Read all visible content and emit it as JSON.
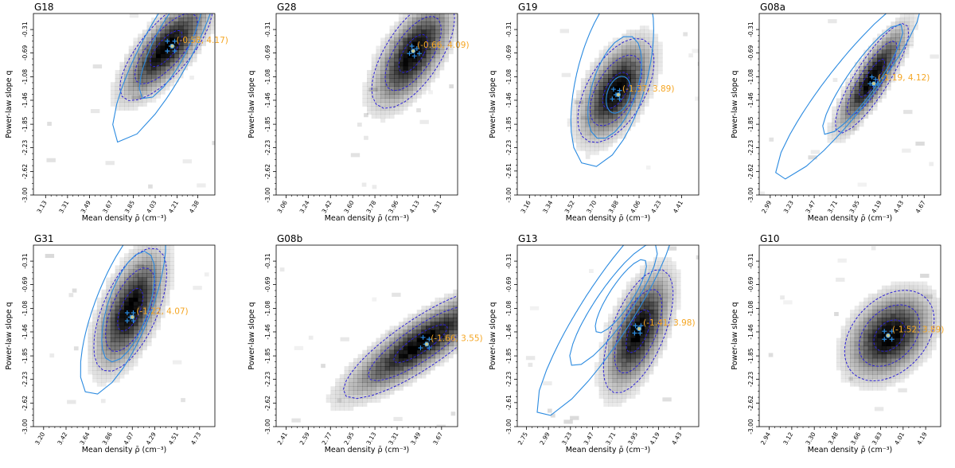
{
  "figure": {
    "xlabel": "Mean density ρ̄ (cm⁻³)",
    "ylabel": "Power-law slope q",
    "colors": {
      "density": "#000000",
      "dashed_contour": "#2b1fd6",
      "solid_contour": "#2a8ae0",
      "best_fit_label": "#f5a623",
      "markers": "#2a8ae0",
      "best_fit_marker": "#c8c890"
    }
  },
  "chart_data": [
    {
      "type": "heatmap",
      "title": "G18",
      "xlabel": "Mean density ρ̄ (cm⁻³)",
      "ylabel": "Power-law slope q",
      "x_ticks": [
        "3.13",
        "3.31",
        "3.49",
        "3.67",
        "3.85",
        "4.03",
        "4.21",
        "4.38"
      ],
      "y_ticks": [
        "-0.31",
        "-0.69",
        "-1.08",
        "-1.46",
        "-1.85",
        "-2.23",
        "-2.62",
        "-3.00"
      ],
      "xlim": [
        3.03,
        4.52
      ],
      "ylim": [
        -3.0,
        -0.05
      ],
      "peak": {
        "x": 4.12,
        "y": -0.62,
        "sx": 0.17,
        "sy": 0.38,
        "rho": 0.75
      },
      "best_fit": {
        "x": 4.17,
        "y": -0.58,
        "label": "(-0.58, 4.17)"
      },
      "markers": [
        [
          4.13,
          -0.5
        ],
        [
          4.19,
          -0.5
        ],
        [
          4.16,
          -0.58
        ],
        [
          4.13,
          -0.66
        ],
        [
          4.19,
          -0.66
        ]
      ],
      "solid_contours": [
        {
          "cx": 4.12,
          "cy": -0.65,
          "sx": 0.22,
          "sy": 0.75,
          "rho": 0.85
        },
        {
          "cx": 4.16,
          "cy": -0.55,
          "sx": 0.13,
          "sy": 0.45,
          "rho": 0.8
        }
      ]
    },
    {
      "type": "heatmap",
      "title": "G28",
      "xlabel": "Mean density ρ̄ (cm⁻³)",
      "ylabel": "Power-law slope q",
      "x_ticks": [
        "3.06",
        "3.24",
        "3.42",
        "3.60",
        "3.78",
        "3.96",
        "4.13",
        "4.31"
      ],
      "y_ticks": [
        "-0.31",
        "-0.69",
        "-1.08",
        "-1.46",
        "-1.85",
        "-2.23",
        "-2.62",
        "-3.00"
      ],
      "xlim": [
        2.98,
        4.45
      ],
      "ylim": [
        -3.0,
        -0.05
      ],
      "peak": {
        "x": 4.09,
        "y": -0.7,
        "sx": 0.15,
        "sy": 0.4,
        "rho": 0.65
      },
      "best_fit": {
        "x": 4.09,
        "y": -0.66,
        "label": "(-0.66, 4.09)"
      },
      "markers": [
        [
          4.08,
          -0.58
        ],
        [
          4.12,
          -0.62
        ],
        [
          4.06,
          -0.7
        ],
        [
          4.1,
          -0.74
        ],
        [
          4.14,
          -0.7
        ]
      ],
      "solid_contours": []
    },
    {
      "type": "heatmap",
      "title": "G19",
      "xlabel": "Mean density ρ̄ (cm⁻³)",
      "ylabel": "Power-law slope q",
      "x_ticks": [
        "3.16",
        "3.34",
        "3.52",
        "3.70",
        "3.88",
        "4.06",
        "4.23",
        "4.41"
      ],
      "y_ticks": [
        "-0.31",
        "-0.69",
        "-1.08",
        "-1.46",
        "-1.85",
        "-2.23",
        "-2.61",
        "-3.00"
      ],
      "xlim": [
        3.06,
        4.55
      ],
      "ylim": [
        -3.0,
        -0.05
      ],
      "peak": {
        "x": 3.87,
        "y": -1.3,
        "sx": 0.14,
        "sy": 0.38,
        "rho": 0.55
      },
      "best_fit": {
        "x": 3.89,
        "y": -1.37,
        "label": "(-1.37, 3.89)"
      },
      "markers": [
        [
          3.85,
          -1.28
        ],
        [
          3.9,
          -1.3
        ],
        [
          3.87,
          -1.37
        ],
        [
          3.84,
          -1.44
        ],
        [
          3.9,
          -1.44
        ]
      ],
      "solid_contours": [
        {
          "cx": 3.84,
          "cy": -1.05,
          "sx": 0.17,
          "sy": 0.75,
          "rho": 0.5
        },
        {
          "cx": 3.86,
          "cy": -1.25,
          "sx": 0.11,
          "sy": 0.42,
          "rho": 0.5
        },
        {
          "cx": 3.89,
          "cy": -1.37,
          "sx": 0.05,
          "sy": 0.15,
          "rho": 0.3
        }
      ]
    },
    {
      "type": "heatmap",
      "title": "G08a",
      "xlabel": "Mean density ρ̄ (cm⁻³)",
      "ylabel": "Power-law slope q",
      "x_ticks": [
        "2.99",
        "3.23",
        "3.47",
        "3.71",
        "3.95",
        "4.19",
        "4.43",
        "4.67"
      ],
      "y_ticks": [
        "-0.31",
        "-0.69",
        "-1.08",
        "-1.46",
        "-1.85",
        "-2.23",
        "-2.62",
        "-3.00"
      ],
      "xlim": [
        2.87,
        4.85
      ],
      "ylim": [
        -3.0,
        -0.05
      ],
      "peak": {
        "x": 4.1,
        "y": -1.1,
        "sx": 0.18,
        "sy": 0.4,
        "rho": 0.85
      },
      "best_fit": {
        "x": 4.12,
        "y": -1.19,
        "label": "(-1.19, 4.12)"
      },
      "markers": [
        [
          4.1,
          -1.08
        ],
        [
          4.14,
          -1.12
        ],
        [
          4.08,
          -1.19
        ],
        [
          4.12,
          -1.22
        ],
        [
          4.16,
          -1.19
        ]
      ],
      "solid_contours": [
        {
          "cx": 3.85,
          "cy": -1.25,
          "sx": 0.4,
          "sy": 0.75,
          "rho": 0.92
        },
        {
          "cx": 4.0,
          "cy": -1.12,
          "sx": 0.22,
          "sy": 0.45,
          "rho": 0.9
        }
      ]
    },
    {
      "type": "heatmap",
      "title": "G31",
      "xlabel": "Mean density ρ̄ (cm⁻³)",
      "ylabel": "Power-law slope q",
      "x_ticks": [
        "3.20",
        "3.42",
        "3.64",
        "3.86",
        "4.07",
        "4.29",
        "4.51",
        "4.73"
      ],
      "y_ticks": [
        "-0.31",
        "-0.69",
        "-1.08",
        "-1.46",
        "-1.85",
        "-2.23",
        "-2.62",
        "-3.00"
      ],
      "xlim": [
        3.1,
        4.88
      ],
      "ylim": [
        -3.0,
        -0.05
      ],
      "peak": {
        "x": 4.05,
        "y": -1.1,
        "sx": 0.16,
        "sy": 0.45,
        "rho": 0.6
      },
      "best_fit": {
        "x": 4.07,
        "y": -1.22,
        "label": "(-1.22, 4.07)"
      },
      "markers": [
        [
          4.02,
          -1.15
        ],
        [
          4.08,
          -1.15
        ],
        [
          4.05,
          -1.22
        ],
        [
          4.02,
          -1.28
        ],
        [
          4.08,
          -1.28
        ]
      ],
      "solid_contours": [
        {
          "cx": 3.98,
          "cy": -1.05,
          "sx": 0.21,
          "sy": 0.72,
          "rho": 0.72
        },
        {
          "cx": 4.03,
          "cy": -1.05,
          "sx": 0.13,
          "sy": 0.45,
          "rho": 0.6
        }
      ]
    },
    {
      "type": "heatmap",
      "title": "G08b",
      "xlabel": "Mean density ρ̄ (cm⁻³)",
      "ylabel": "Power-law slope q",
      "x_ticks": [
        "2.41",
        "2.59",
        "2.77",
        "2.95",
        "3.13",
        "3.31",
        "3.49",
        "3.67"
      ],
      "y_ticks": [
        "-0.31",
        "-0.69",
        "-1.08",
        "-1.46",
        "-1.85",
        "-2.23",
        "-2.62",
        "-3.00"
      ],
      "xlim": [
        2.33,
        3.8
      ],
      "ylim": [
        -3.0,
        -0.05
      ],
      "peak": {
        "x": 3.5,
        "y": -1.65,
        "sx": 0.28,
        "sy": 0.4,
        "rho": 0.85
      },
      "best_fit": {
        "x": 3.55,
        "y": -1.66,
        "label": "(-1.66, 3.55)"
      },
      "markers": [
        [
          3.52,
          -1.55
        ],
        [
          3.57,
          -1.58
        ],
        [
          3.54,
          -1.66
        ],
        [
          3.5,
          -1.72
        ],
        [
          3.57,
          -1.72
        ]
      ],
      "solid_contours": []
    },
    {
      "type": "heatmap",
      "title": "G13",
      "xlabel": "Mean density ρ̄ (cm⁻³)",
      "ylabel": "Power-law slope q",
      "x_ticks": [
        "2.75",
        "2.99",
        "3.23",
        "3.47",
        "3.71",
        "3.95",
        "4.19",
        "4.43"
      ],
      "y_ticks": [
        "-0.31",
        "-0.69",
        "-1.08",
        "-1.46",
        "-1.85",
        "-2.23",
        "-2.61",
        "-3.00"
      ],
      "xlim": [
        2.65,
        4.63
      ],
      "ylim": [
        -3.0,
        -0.05
      ],
      "peak": {
        "x": 3.97,
        "y": -1.45,
        "sx": 0.17,
        "sy": 0.45,
        "rho": 0.6
      },
      "best_fit": {
        "x": 3.98,
        "y": -1.41,
        "label": "(-1.41, 3.98)"
      },
      "markers": [
        [
          3.94,
          -1.36
        ],
        [
          4.0,
          -1.36
        ],
        [
          3.97,
          -1.41
        ],
        [
          3.93,
          -1.48
        ],
        [
          3.99,
          -1.48
        ]
      ],
      "solid_contours": [
        {
          "cx": 3.62,
          "cy": -1.15,
          "sx": 0.38,
          "sy": 0.85,
          "rho": 0.9
        },
        {
          "cx": 3.7,
          "cy": -1.02,
          "sx": 0.24,
          "sy": 0.5,
          "rho": 0.88
        },
        {
          "cx": 3.78,
          "cy": -0.88,
          "sx": 0.14,
          "sy": 0.3,
          "rho": 0.85
        }
      ]
    },
    {
      "type": "heatmap",
      "title": "G10",
      "xlabel": "Mean density ρ̄ (cm⁻³)",
      "ylabel": "Power-law slope q",
      "x_ticks": [
        "2.94",
        "3.12",
        "3.30",
        "3.48",
        "3.66",
        "3.83",
        "4.01",
        "4.19"
      ],
      "y_ticks": [
        "-0.31",
        "-0.69",
        "-1.08",
        "-1.46",
        "-1.85",
        "-2.23",
        "-2.62",
        "-3.00"
      ],
      "xlim": [
        2.86,
        4.31
      ],
      "ylim": [
        -3.0,
        -0.05
      ],
      "peak": {
        "x": 3.9,
        "y": -1.52,
        "sx": 0.16,
        "sy": 0.33,
        "rho": 0.35
      },
      "best_fit": {
        "x": 3.89,
        "y": -1.52,
        "label": "(-1.52, 3.89)"
      },
      "markers": [
        [
          3.86,
          -1.45
        ],
        [
          3.92,
          -1.45
        ],
        [
          3.89,
          -1.52
        ],
        [
          3.86,
          -1.58
        ],
        [
          3.92,
          -1.58
        ]
      ],
      "solid_contours": []
    }
  ]
}
